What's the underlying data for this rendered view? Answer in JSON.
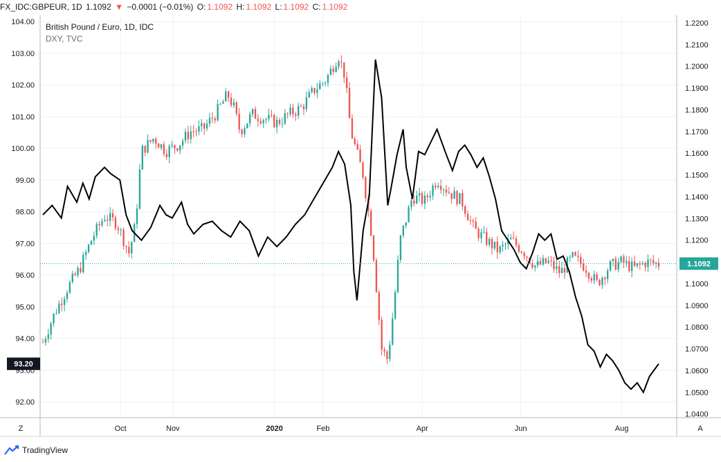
{
  "header": {
    "symbol": "FX_IDC:GBPEUR, 1D",
    "last": "1.1092",
    "change": "−0.0001 (−0.01%)",
    "o_label": "O:",
    "o_value": "1.1092",
    "h_label": "H:",
    "h_value": "1.1092",
    "l_label": "L:",
    "l_value": "1.1092",
    "c_label": "C:",
    "c_value": "1.1092",
    "down_color": "#ef5350"
  },
  "brand": {
    "name": "TradingView",
    "icon": "tradingview-logo-icon"
  },
  "corner": {
    "left": "Z",
    "right": "A"
  },
  "chart_data": {
    "type": "line",
    "legend": [
      "British Pound / Euro, 1D, IDC",
      "DXY, TVC"
    ],
    "left_axis": {
      "ticks": [
        "104.00",
        "103.00",
        "102.00",
        "101.00",
        "100.00",
        "99.00",
        "98.00",
        "97.00",
        "96.00",
        "95.00",
        "94.00",
        "93.00",
        "92.00"
      ],
      "range": [
        91.5,
        104.2
      ],
      "current_value": "93.20",
      "current": 93.2
    },
    "right_axis": {
      "ticks": [
        "1.2200",
        "1.2100",
        "1.2000",
        "1.1900",
        "1.1800",
        "1.1700",
        "1.1600",
        "1.1500",
        "1.1400",
        "1.1300",
        "1.1200",
        "1.1100",
        "1.1000",
        "1.0900",
        "1.0800",
        "1.0700",
        "1.0600",
        "1.0500",
        "1.0400"
      ],
      "range": [
        1.0383,
        1.2235
      ],
      "current_value": "1.1092",
      "current": 1.1092
    },
    "x_axis": {
      "labels": [
        {
          "text": "Oct",
          "x": 0.126,
          "bold": false
        },
        {
          "text": "Nov",
          "x": 0.211,
          "bold": false
        },
        {
          "text": "2020",
          "x": 0.376,
          "bold": true
        },
        {
          "text": "Feb",
          "x": 0.455,
          "bold": false
        },
        {
          "text": "Apr",
          "x": 0.616,
          "bold": false
        },
        {
          "text": "Jun",
          "x": 0.776,
          "bold": false
        },
        {
          "text": "Aug",
          "x": 0.94,
          "bold": false
        }
      ]
    },
    "series": [
      {
        "name": "British Pound / Euro, 1D, IDC",
        "style": "candles",
        "up_color": "#26a69a",
        "down_color": "#ef5350",
        "x": [
          0.0,
          0.02,
          0.04,
          0.06,
          0.08,
          0.1,
          0.12,
          0.14,
          0.15,
          0.16,
          0.18,
          0.2,
          0.22,
          0.24,
          0.26,
          0.28,
          0.3,
          0.31,
          0.32,
          0.34,
          0.36,
          0.38,
          0.4,
          0.42,
          0.44,
          0.46,
          0.48,
          0.49,
          0.5,
          0.52,
          0.535,
          0.55,
          0.56,
          0.57,
          0.58,
          0.6,
          0.62,
          0.64,
          0.66,
          0.68,
          0.7,
          0.72,
          0.74,
          0.76,
          0.78,
          0.8,
          0.82,
          0.84,
          0.86,
          0.88,
          0.9,
          0.92,
          0.94,
          0.96,
          0.98,
          1.0
        ],
        "values": [
          1.073,
          1.087,
          1.098,
          1.107,
          1.121,
          1.131,
          1.128,
          1.114,
          1.127,
          1.161,
          1.167,
          1.161,
          1.164,
          1.17,
          1.171,
          1.178,
          1.187,
          1.181,
          1.17,
          1.178,
          1.176,
          1.174,
          1.178,
          1.181,
          1.189,
          1.194,
          1.205,
          1.196,
          1.17,
          1.15,
          1.12,
          1.07,
          1.065,
          1.09,
          1.12,
          1.14,
          1.138,
          1.148,
          1.142,
          1.138,
          1.125,
          1.12,
          1.115,
          1.12,
          1.115,
          1.108,
          1.11,
          1.105,
          1.112,
          1.108,
          1.1,
          1.108,
          1.11,
          1.107,
          1.11,
          1.109
        ]
      },
      {
        "name": "DXY, TVC",
        "style": "line",
        "color": "#000000",
        "x": [
          0.0,
          0.015,
          0.03,
          0.04,
          0.055,
          0.065,
          0.075,
          0.085,
          0.1,
          0.11,
          0.125,
          0.135,
          0.145,
          0.16,
          0.175,
          0.19,
          0.2,
          0.21,
          0.225,
          0.235,
          0.245,
          0.26,
          0.275,
          0.29,
          0.305,
          0.32,
          0.335,
          0.35,
          0.365,
          0.38,
          0.395,
          0.41,
          0.425,
          0.44,
          0.455,
          0.47,
          0.48,
          0.49,
          0.5,
          0.505,
          0.51,
          0.52,
          0.53,
          0.54,
          0.55,
          0.56,
          0.565,
          0.575,
          0.585,
          0.59,
          0.6,
          0.61,
          0.62,
          0.63,
          0.64,
          0.655,
          0.665,
          0.675,
          0.685,
          0.695,
          0.705,
          0.715,
          0.725,
          0.735,
          0.745,
          0.755,
          0.765,
          0.775,
          0.785,
          0.795,
          0.805,
          0.815,
          0.825,
          0.835,
          0.845,
          0.855,
          0.865,
          0.875,
          0.885,
          0.895,
          0.905,
          0.915,
          0.925,
          0.935,
          0.945,
          0.955,
          0.965,
          0.975,
          0.985,
          1.0
        ],
        "values": [
          97.9,
          98.2,
          97.8,
          98.8,
          98.3,
          98.9,
          98.4,
          99.1,
          99.4,
          99.2,
          99.0,
          97.9,
          97.4,
          97.1,
          97.5,
          98.2,
          97.9,
          97.8,
          98.3,
          97.6,
          97.3,
          97.6,
          97.7,
          97.4,
          97.2,
          97.7,
          97.4,
          96.6,
          97.2,
          96.9,
          97.2,
          97.6,
          97.9,
          98.4,
          98.9,
          99.4,
          99.9,
          99.5,
          98.2,
          96.1,
          95.2,
          97.4,
          98.5,
          102.8,
          101.6,
          98.2,
          98.7,
          99.8,
          100.6,
          99.4,
          98.4,
          99.9,
          99.8,
          100.2,
          100.6,
          99.8,
          99.3,
          99.9,
          100.1,
          99.8,
          99.4,
          99.7,
          99.1,
          98.4,
          97.4,
          97.1,
          96.8,
          96.4,
          96.2,
          96.7,
          97.3,
          97.1,
          97.3,
          96.5,
          96.6,
          96.1,
          95.3,
          94.7,
          93.8,
          93.6,
          93.1,
          93.5,
          93.3,
          93.0,
          92.6,
          92.4,
          92.6,
          92.3,
          92.8,
          93.2
        ]
      }
    ]
  }
}
